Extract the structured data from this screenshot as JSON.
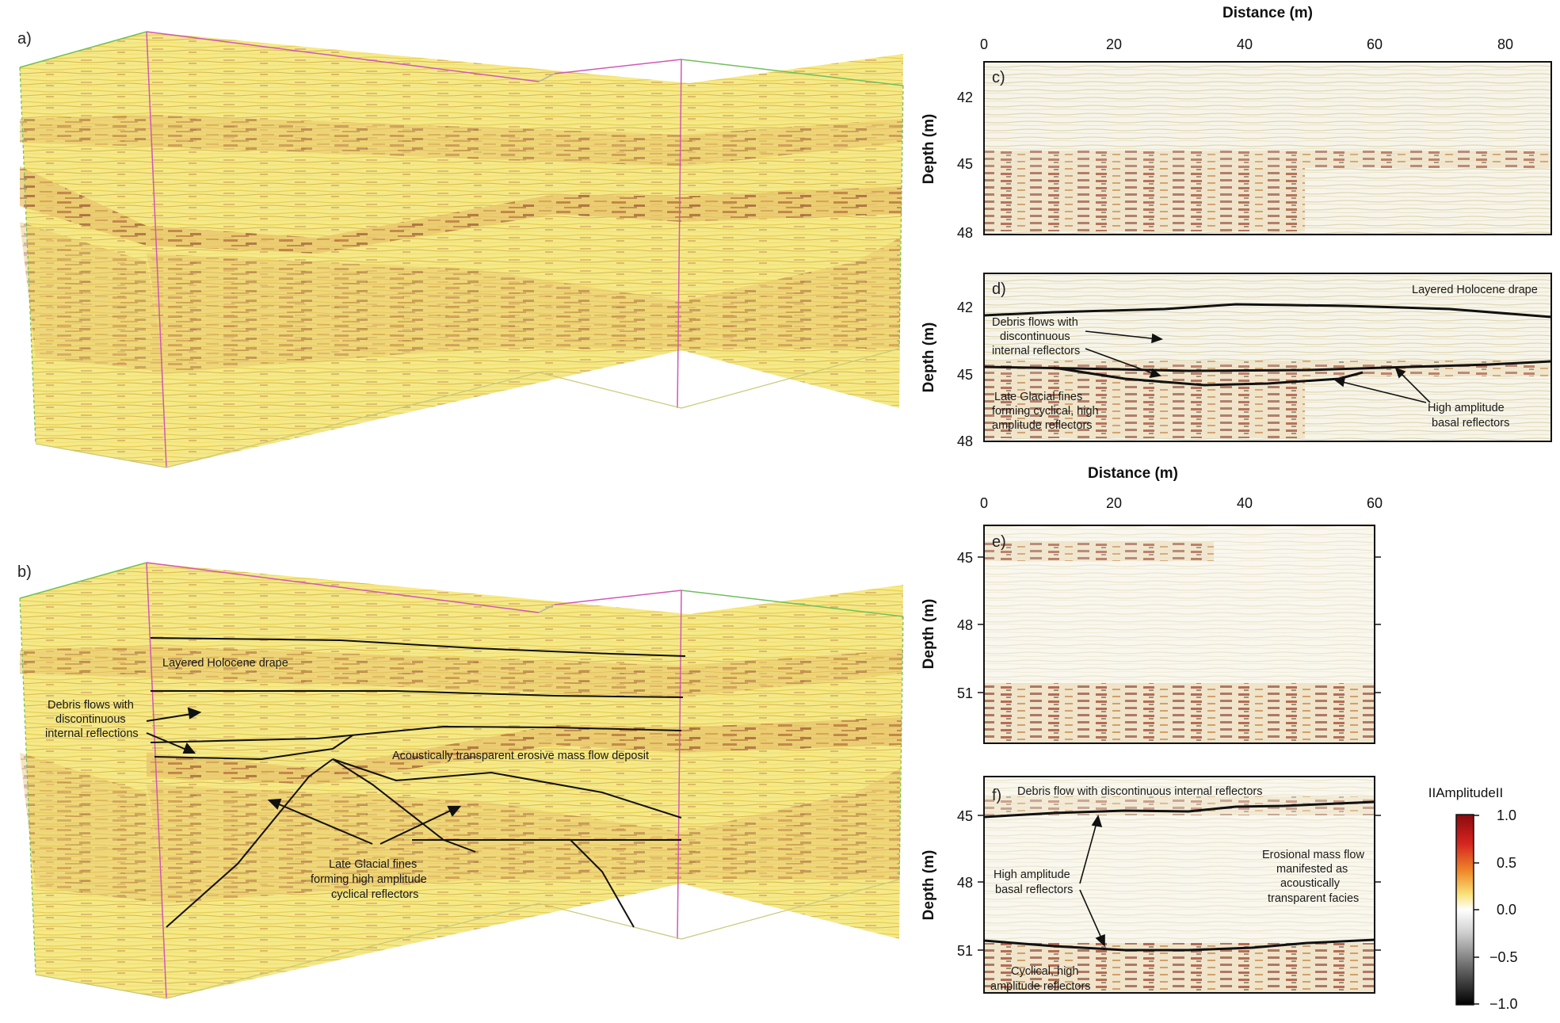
{
  "figure": {
    "panel_labels": {
      "a": "a)",
      "b": "b)",
      "c": "c)",
      "d": "d)",
      "e": "e)",
      "f": "f)"
    }
  },
  "top_plots": {
    "x_axis_title": "Distance (m)",
    "x_ticks": [
      "0",
      "20",
      "40",
      "60",
      "80"
    ],
    "y_axis_title": "Depth (m)",
    "y_ticks": [
      "42",
      "45",
      "48"
    ]
  },
  "bottom_plots": {
    "x_axis_title": "Distance (m)",
    "x_ticks": [
      "0",
      "20",
      "40",
      "60"
    ],
    "y_axis_title": "Depth (m)",
    "y_ticks": [
      "45",
      "48",
      "51"
    ]
  },
  "panel_b": {
    "annotations": [
      "Layered Holocene drape",
      "Debris flows with",
      "discontinuous",
      "internal reflections",
      "Acoustically transparent erosive mass flow deposit",
      "Late Glacial fines",
      "forming high amplitude",
      "cyclical reflectors"
    ]
  },
  "panel_d": {
    "annotations": [
      "Layered Holocene drape",
      "Debris flows with",
      "discontinuous",
      "internal reflectors",
      "Late Glacial fines",
      "forming cyclical, high",
      "amplitude reflectors",
      "High amplitude",
      "basal reflectors"
    ]
  },
  "panel_f": {
    "annotations": [
      "Debris flow with discontinuous internal reflectors",
      "High amplitude",
      "basal reflectors",
      "Erosional mass flow",
      "manifested as",
      "acoustically",
      "transparent facies",
      "Cyclical, high",
      "amplitude reflectors"
    ]
  },
  "colorbar": {
    "title": "IIAmplitudeII",
    "ticks": [
      "1.0",
      "0.5",
      "0.0",
      "−0.5",
      "−1.0"
    ]
  }
}
